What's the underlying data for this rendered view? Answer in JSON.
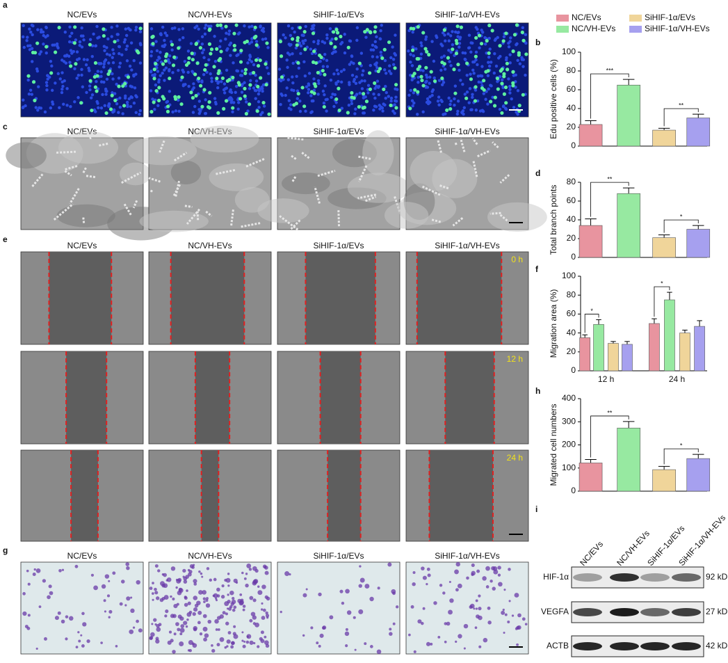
{
  "panels": {
    "a": {
      "label": "a",
      "titles": [
        "NC/EVs",
        "NC/VH-EVs",
        "SiHIF-1α/EVs",
        "SiHIF-1α/VH-EVs"
      ]
    },
    "c": {
      "label": "c",
      "titles": [
        "NC/EVs",
        "NC/VH-EVs",
        "SiHIF-1α/EVs",
        "SiHIF-1α/VH-EVs"
      ]
    },
    "e": {
      "label": "e",
      "titles": [
        "NC/EVs",
        "NC/VH-EVs",
        "SiHIF-1α/EVs",
        "SiHIF-1α/VH-EVs"
      ],
      "times": [
        "0 h",
        "12 h",
        "24 h"
      ]
    },
    "g": {
      "label": "g",
      "titles": [
        "NC/EVs",
        "NC/VH-EVs",
        "SiHIF-1α/EVs",
        "SiHIF-1α/VH-EVs"
      ]
    }
  },
  "legend": [
    {
      "name": "NC/EVs",
      "color": "#e8949f"
    },
    {
      "name": "NC/VH-EVs",
      "color": "#97e9a1"
    },
    {
      "name": "SiHIF-1α/EVs",
      "color": "#f0d59a"
    },
    {
      "name": "SiHIF-1α/VH-EVs",
      "color": "#a6a0ef"
    }
  ],
  "chart_data": [
    {
      "type": "bar",
      "label": "b",
      "y_label": "Edu positive cells (%)",
      "ylim": [
        0,
        100
      ],
      "yticks": [
        0,
        20,
        40,
        60,
        80,
        100
      ],
      "values": [
        23,
        65,
        17,
        30
      ],
      "errors": [
        4,
        6,
        2,
        4
      ],
      "annotations": [
        "***",
        "**"
      ]
    },
    {
      "type": "bar",
      "label": "d",
      "y_label": "Total branch points",
      "ylim": [
        0,
        80
      ],
      "yticks": [
        0,
        20,
        40,
        60,
        80
      ],
      "values": [
        34,
        68,
        21,
        30
      ],
      "errors": [
        7,
        6,
        3,
        4
      ],
      "annotations": [
        "**",
        "*"
      ]
    },
    {
      "type": "grouped",
      "label": "f",
      "y_label": "Migration area (%)",
      "ylim": [
        0,
        100
      ],
      "yticks": [
        0,
        20,
        40,
        60,
        80,
        100
      ],
      "categories": [
        "12 h",
        "24 h"
      ],
      "series": [
        {
          "values": [
            35,
            50
          ],
          "errors": [
            3,
            5
          ]
        },
        {
          "values": [
            49,
            75
          ],
          "errors": [
            5,
            8
          ]
        },
        {
          "values": [
            29,
            40
          ],
          "errors": [
            2,
            3
          ]
        },
        {
          "values": [
            28,
            47
          ],
          "errors": [
            3,
            6
          ]
        }
      ],
      "annotations": [
        "*",
        "*"
      ]
    },
    {
      "type": "bar",
      "label": "h",
      "y_label": "Migrated cell numbers",
      "ylim": [
        0,
        400
      ],
      "yticks": [
        0,
        100,
        200,
        300,
        400
      ],
      "values": [
        122,
        273,
        93,
        141
      ],
      "errors": [
        15,
        28,
        14,
        18
      ],
      "annotations": [
        "**",
        "*"
      ]
    }
  ],
  "blot": {
    "label": "i",
    "lanes": [
      "NC/EVs",
      "NC/VH-EVs",
      "SiHIF-1α/EVs",
      "SiHIF-1α/VH-EVs"
    ],
    "rows": [
      {
        "name": "HIF-1α",
        "size": "92 kDa"
      },
      {
        "name": "VEGFA",
        "size": "27 kDa"
      },
      {
        "name": "ACTB",
        "size": "42 kDa"
      }
    ]
  }
}
